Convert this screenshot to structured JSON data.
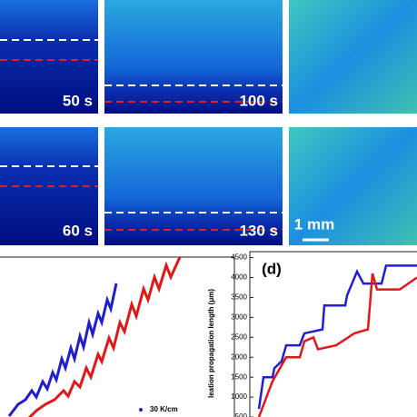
{
  "panel_labels": [
    "50 s",
    "100 s",
    "60 s",
    "130 s"
  ],
  "scale_bar": "1 mm",
  "chart_data": [
    {
      "type": "line",
      "xlim": [
        0,
        258
      ],
      "ylim": [
        0,
        187
      ],
      "series": [
        {
          "name": "30 K/cm",
          "color": "#1f1fd0",
          "x": [
            10,
            20,
            28,
            35,
            40,
            47,
            52,
            58,
            62,
            68,
            72,
            78,
            82,
            88,
            92,
            98,
            102,
            108,
            112,
            118,
            122,
            128
          ],
          "values": [
            12,
            25,
            30,
            40,
            33,
            50,
            42,
            60,
            52,
            75,
            65,
            87,
            75,
            100,
            88,
            115,
            102,
            125,
            115,
            140,
            130,
            158
          ]
        },
        {
          "color": "#e01818",
          "x": [
            30,
            40,
            50,
            60,
            70,
            75,
            82,
            88,
            95,
            100,
            108,
            112,
            120,
            125,
            132,
            137,
            145,
            150,
            158,
            163,
            170,
            175,
            183,
            188,
            198
          ],
          "values": [
            8,
            18,
            25,
            30,
            40,
            34,
            50,
            44,
            65,
            55,
            80,
            72,
            98,
            87,
            115,
            105,
            135,
            122,
            152,
            140,
            165,
            152,
            178,
            165,
            187
          ]
        }
      ]
    },
    {
      "type": "line",
      "title": "(d)",
      "y_label": "leation propagation length (μm)",
      "xlim": [
        0,
        184
      ],
      "ylim": [
        0,
        4650
      ],
      "yticks": [
        500,
        1000,
        1500,
        2000,
        2500,
        3000,
        3500,
        4000,
        4500
      ],
      "series": [
        {
          "color": "#1f1fd0",
          "x": [
            10,
            15,
            25,
            27,
            35,
            40,
            55,
            60,
            80,
            82,
            105,
            107,
            118,
            125,
            145,
            150,
            184
          ],
          "values": [
            705,
            1500,
            1500,
            1727,
            1900,
            2300,
            2300,
            2600,
            2700,
            3300,
            3300,
            3550,
            4150,
            3850,
            3850,
            4300,
            4300
          ]
        },
        {
          "color": "#e01818",
          "x": [
            10,
            25,
            40,
            55,
            60,
            70,
            75,
            95,
            115,
            130,
            135,
            140,
            165,
            184
          ],
          "values": [
            500,
            1400,
            2000,
            2000,
            2400,
            2500,
            2200,
            2300,
            2600,
            2700,
            4100,
            3700,
            3700,
            4000
          ]
        }
      ]
    }
  ]
}
